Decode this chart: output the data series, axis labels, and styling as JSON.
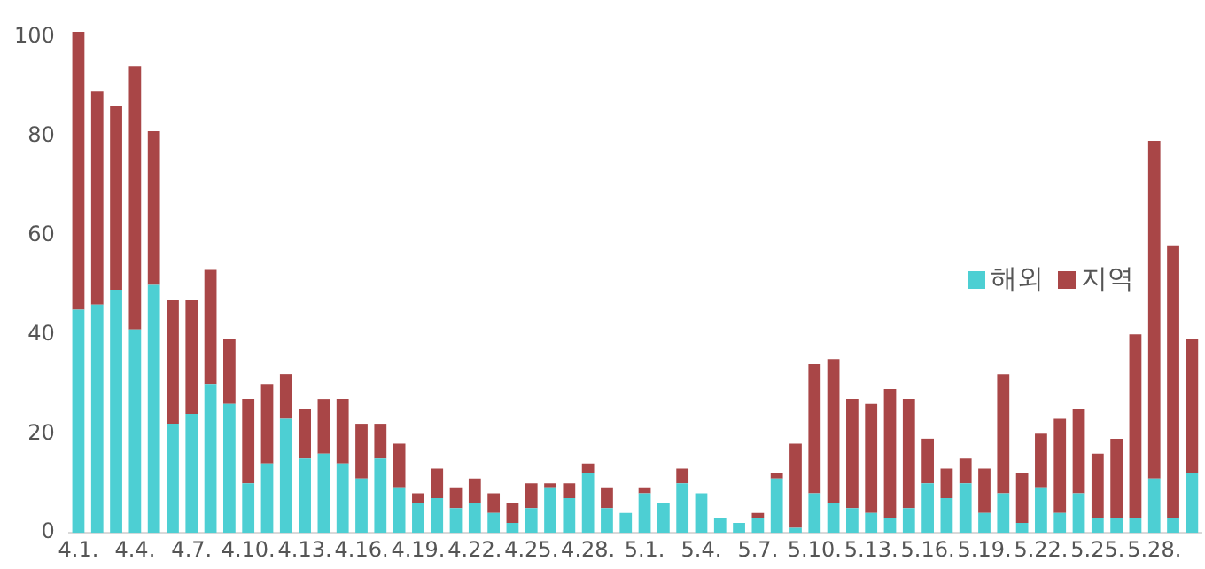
{
  "chart_data": {
    "type": "bar",
    "stacked": true,
    "categories": [
      "4.1.",
      null,
      null,
      "4.4.",
      null,
      null,
      "4.7.",
      null,
      null,
      "4.10.",
      null,
      null,
      "4.13.",
      null,
      null,
      "4.16.",
      null,
      null,
      "4.19.",
      null,
      null,
      "4.22.",
      null,
      null,
      "4.25.",
      null,
      null,
      "4.28.",
      null,
      null,
      "5.1.",
      null,
      null,
      "5.4.",
      null,
      null,
      "5.7.",
      null,
      null,
      "5.10.",
      null,
      null,
      "5.13.",
      null,
      null,
      "5.16.",
      null,
      null,
      "5.19.",
      null,
      null,
      "5.22.",
      null,
      null,
      "5.25.",
      null,
      null,
      "5.28.",
      null,
      null
    ],
    "series": [
      {
        "name": "해외",
        "color": "#4dcfd3",
        "values": [
          45,
          46,
          49,
          41,
          50,
          22,
          24,
          30,
          26,
          10,
          14,
          23,
          15,
          16,
          14,
          11,
          15,
          9,
          6,
          7,
          5,
          6,
          4,
          2,
          5,
          9,
          7,
          12,
          5,
          4,
          8,
          6,
          10,
          8,
          3,
          2,
          3,
          11,
          1,
          8,
          6,
          5,
          4,
          3,
          5,
          10,
          7,
          10,
          4,
          8,
          2,
          9,
          4,
          8,
          3,
          3,
          3,
          11,
          3,
          12
        ]
      },
      {
        "name": "지역",
        "color": "#a94647",
        "values": [
          56,
          43,
          37,
          53,
          31,
          25,
          23,
          23,
          13,
          17,
          16,
          9,
          10,
          11,
          13,
          11,
          7,
          9,
          2,
          6,
          4,
          5,
          4,
          4,
          5,
          1,
          3,
          2,
          4,
          0,
          1,
          0,
          3,
          0,
          0,
          0,
          1,
          1,
          17,
          26,
          29,
          22,
          22,
          26,
          22,
          9,
          6,
          5,
          9,
          24,
          10,
          11,
          19,
          17,
          13,
          16,
          37,
          68,
          55,
          27
        ]
      }
    ],
    "ylim": [
      0,
      102
    ],
    "yticks": [
      0,
      20,
      40,
      60,
      80,
      100
    ],
    "grid": false,
    "legend": "right"
  }
}
